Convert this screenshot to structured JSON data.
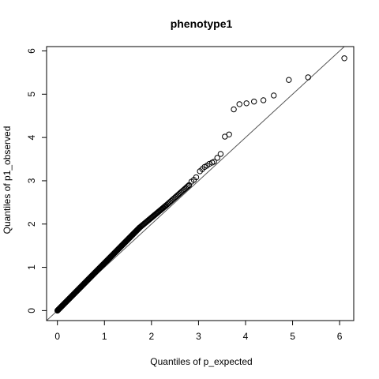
{
  "chart_data": {
    "type": "scatter",
    "title": "phenotype1",
    "xlabel": "Quantiles of p_expected",
    "ylabel": "Quantiles of p1_observed",
    "xlim": [
      -0.23,
      6.3
    ],
    "ylim": [
      -0.23,
      6.1
    ],
    "xticks": [
      0,
      1,
      2,
      3,
      4,
      5,
      6
    ],
    "yticks": [
      0,
      1,
      2,
      3,
      4,
      5,
      6
    ],
    "reference_line": {
      "slope": 1,
      "intercept": 0,
      "color": "#555555"
    },
    "grid": false,
    "legend": "none",
    "point_style": "open-circle",
    "dense_segments": [
      {
        "x_start": 0.0,
        "x_end": 1.75,
        "y_start": 0.0,
        "y_end": 1.92,
        "count": 260
      },
      {
        "x_start": 1.75,
        "x_end": 2.3,
        "y_start": 1.92,
        "y_end": 2.42,
        "count": 36
      },
      {
        "x_start": 2.3,
        "x_end": 2.8,
        "y_start": 2.42,
        "y_end": 2.9,
        "count": 22
      }
    ],
    "points": [
      {
        "x": 2.85,
        "y": 2.98
      },
      {
        "x": 2.9,
        "y": 3.02
      },
      {
        "x": 2.95,
        "y": 3.08
      },
      {
        "x": 3.03,
        "y": 3.22
      },
      {
        "x": 3.08,
        "y": 3.27
      },
      {
        "x": 3.13,
        "y": 3.32
      },
      {
        "x": 3.18,
        "y": 3.35
      },
      {
        "x": 3.23,
        "y": 3.39
      },
      {
        "x": 3.29,
        "y": 3.42
      },
      {
        "x": 3.33,
        "y": 3.44
      },
      {
        "x": 3.4,
        "y": 3.53
      },
      {
        "x": 3.47,
        "y": 3.62
      },
      {
        "x": 3.56,
        "y": 4.02
      },
      {
        "x": 3.65,
        "y": 4.07
      },
      {
        "x": 3.75,
        "y": 4.65
      },
      {
        "x": 3.87,
        "y": 4.77
      },
      {
        "x": 4.02,
        "y": 4.79
      },
      {
        "x": 4.18,
        "y": 4.83
      },
      {
        "x": 4.38,
        "y": 4.86
      },
      {
        "x": 4.6,
        "y": 4.97
      },
      {
        "x": 4.92,
        "y": 5.33
      },
      {
        "x": 5.33,
        "y": 5.39
      },
      {
        "x": 6.1,
        "y": 5.83
      }
    ]
  }
}
